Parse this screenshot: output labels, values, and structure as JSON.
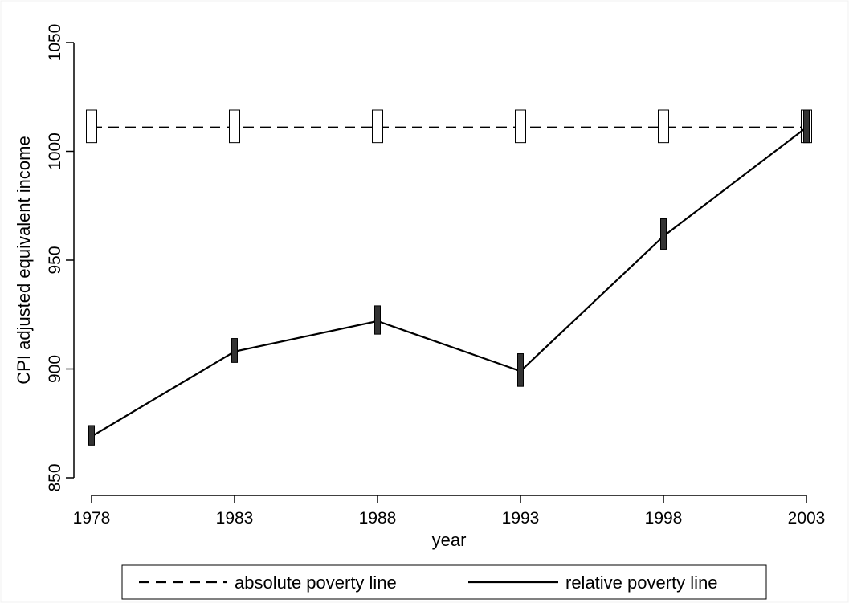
{
  "chart_data": {
    "type": "line",
    "title": "",
    "xlabel": "year",
    "ylabel": "CPI adjusted equivalent income",
    "x": [
      1978,
      1983,
      1988,
      1993,
      1998,
      2003
    ],
    "x_ticks": [
      1978,
      1983,
      1988,
      1993,
      1998,
      2003
    ],
    "y_ticks": [
      850,
      900,
      950,
      1000,
      1050
    ],
    "xlim": [
      1978,
      2003
    ],
    "ylim": [
      850,
      1050
    ],
    "grid": false,
    "legend_position": "bottom",
    "series": [
      {
        "name": "absolute poverty line",
        "values": [
          1011,
          1011,
          1011,
          1011,
          1011,
          1011
        ],
        "ci_low": [
          1004,
          1004,
          1004,
          1004,
          1004,
          1004
        ],
        "ci_high": [
          1019,
          1019,
          1019,
          1019,
          1019,
          1019
        ],
        "line_style": "dashed",
        "marker_fill": "#ffffff",
        "color": "#000000"
      },
      {
        "name": "relative poverty line",
        "values": [
          869,
          908,
          922,
          899,
          961,
          1011
        ],
        "ci_low": [
          865,
          903,
          916,
          892,
          955,
          1004
        ],
        "ci_high": [
          874,
          914,
          929,
          907,
          969,
          1019
        ],
        "line_style": "solid",
        "marker_fill": "#333333",
        "color": "#000000"
      }
    ]
  }
}
